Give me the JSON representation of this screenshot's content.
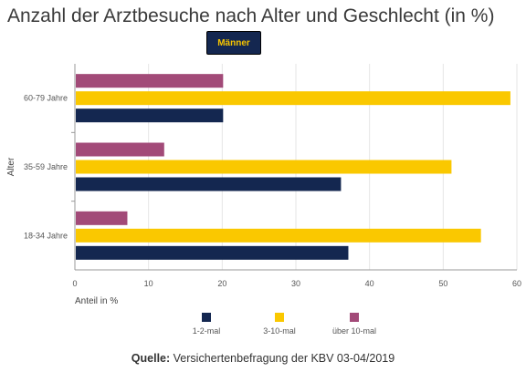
{
  "header": {
    "title": "Anzahl der Arztbesuche nach Alter und Geschlecht (in %)",
    "tab_label": "Männer"
  },
  "footer": {
    "source_label": "Quelle:",
    "source_text": "Versichertenbefragung der KBV 03-04/2019"
  },
  "chart_data": {
    "type": "bar",
    "orientation": "horizontal",
    "ylabel": "Alter",
    "xlabel": "Anteil in %",
    "xlim": [
      0,
      60
    ],
    "xticks": [
      0,
      10,
      20,
      30,
      40,
      50,
      60
    ],
    "categories": [
      "60-79 Jahre",
      "35-59 Jahre",
      "18-34 Jahre"
    ],
    "series": [
      {
        "name": "über 10-mal",
        "color": "#a24a78",
        "values": [
          20,
          12,
          7
        ]
      },
      {
        "name": "3-10-mal",
        "color": "#fac800",
        "values": [
          59,
          51,
          55
        ]
      },
      {
        "name": "1-2-mal",
        "color": "#142750",
        "values": [
          20,
          36,
          37
        ]
      }
    ],
    "legend": {
      "position": "bottom",
      "order": [
        "1-2-mal",
        "3-10-mal",
        "über 10-mal"
      ]
    },
    "grid": true
  }
}
